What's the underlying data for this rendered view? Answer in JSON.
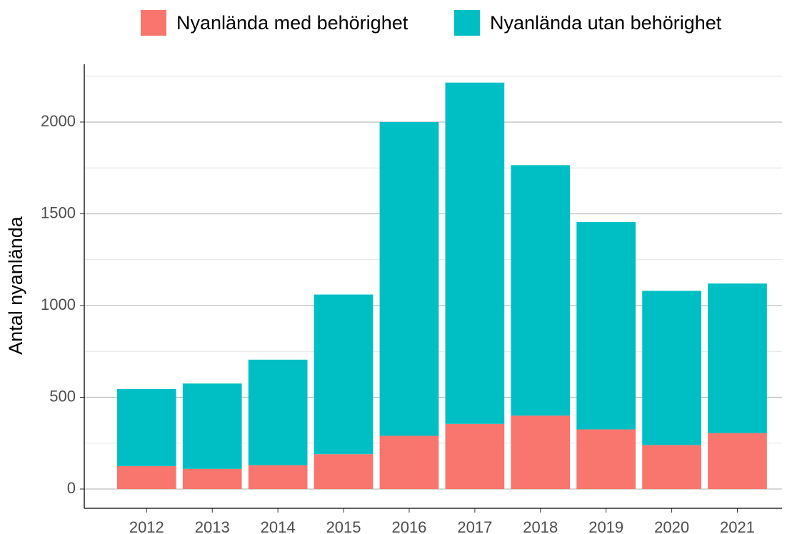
{
  "chart_data": {
    "type": "stacked_bar",
    "y_label": "Antal nyanlända",
    "categories": [
      "2012",
      "2013",
      "2014",
      "2015",
      "2016",
      "2017",
      "2018",
      "2019",
      "2020",
      "2021"
    ],
    "series": [
      {
        "name": "Nyanlända med behörighet",
        "color": "#f8766d",
        "values": [
          125,
          110,
          130,
          190,
          290,
          355,
          400,
          325,
          240,
          305
        ]
      },
      {
        "name": "Nyanlända utan behörighet",
        "color": "#00bfc4",
        "values": [
          420,
          465,
          575,
          870,
          1710,
          1860,
          1365,
          1130,
          840,
          815
        ]
      }
    ],
    "ylim": [
      -105,
      2315
    ],
    "yticks": [
      0,
      500,
      1000,
      1500,
      2000
    ],
    "yticks_minor": [
      250,
      750,
      1250,
      1750,
      2250
    ],
    "grid": true,
    "legend": "top"
  }
}
